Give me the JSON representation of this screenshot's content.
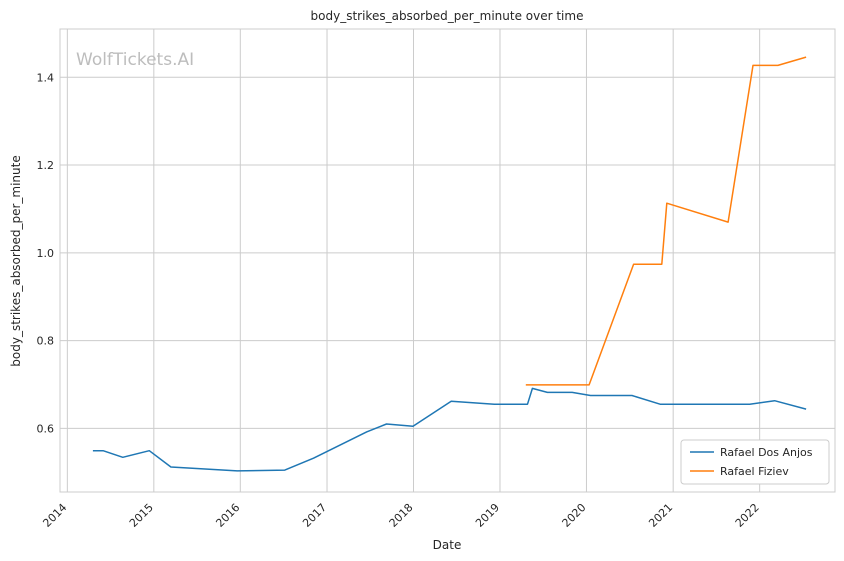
{
  "watermark": "WolfTickets.AI",
  "chart_data": {
    "type": "line",
    "title": "body_strikes_absorbed_per_minute over time",
    "xlabel": "Date",
    "ylabel": "body_strikes_absorbed_per_minute",
    "x_ticks": [
      "2014",
      "2015",
      "2016",
      "2017",
      "2018",
      "2019",
      "2020",
      "2021",
      "2022"
    ],
    "y_ticks": [
      "0.6",
      "0.8",
      "1.0",
      "1.2",
      "1.4"
    ],
    "xlim": [
      "2013-12-01",
      "2022-11-15"
    ],
    "ylim": [
      0.455,
      1.51
    ],
    "grid": true,
    "legend_position": "lower-right",
    "series": [
      {
        "name": "Rafael Dos Anjos",
        "color": "#1f77b4",
        "points": [
          [
            "2014-04-19",
            0.549
          ],
          [
            "2014-06-01",
            0.549
          ],
          [
            "2014-08-23",
            0.534
          ],
          [
            "2014-12-13",
            0.549
          ],
          [
            "2015-03-14",
            0.512
          ],
          [
            "2015-12-19",
            0.503
          ],
          [
            "2016-07-07",
            0.505
          ],
          [
            "2016-11-05",
            0.532
          ],
          [
            "2017-06-17",
            0.592
          ],
          [
            "2017-09-09",
            0.61
          ],
          [
            "2017-12-30",
            0.605
          ],
          [
            "2018-06-09",
            0.662
          ],
          [
            "2018-12-08",
            0.655
          ],
          [
            "2019-04-27",
            0.655
          ],
          [
            "2019-05-18",
            0.691
          ],
          [
            "2019-07-20",
            0.682
          ],
          [
            "2019-11-02",
            0.682
          ],
          [
            "2020-01-18",
            0.675
          ],
          [
            "2020-07-11",
            0.675
          ],
          [
            "2020-11-07",
            0.655
          ],
          [
            "2021-07-24",
            0.655
          ],
          [
            "2021-11-20",
            0.655
          ],
          [
            "2022-03-05",
            0.663
          ],
          [
            "2022-07-16",
            0.644
          ]
        ]
      },
      {
        "name": "Rafael Fiziev",
        "color": "#ff7f0e",
        "points": [
          [
            "2019-04-20",
            0.699
          ],
          [
            "2020-01-12",
            0.699
          ],
          [
            "2020-07-18",
            0.974
          ],
          [
            "2020-11-14",
            0.974
          ],
          [
            "2020-12-05",
            1.113
          ],
          [
            "2021-08-21",
            1.07
          ],
          [
            "2021-12-04",
            1.427
          ],
          [
            "2022-03-19",
            1.427
          ],
          [
            "2022-07-16",
            1.446
          ]
        ]
      }
    ]
  }
}
